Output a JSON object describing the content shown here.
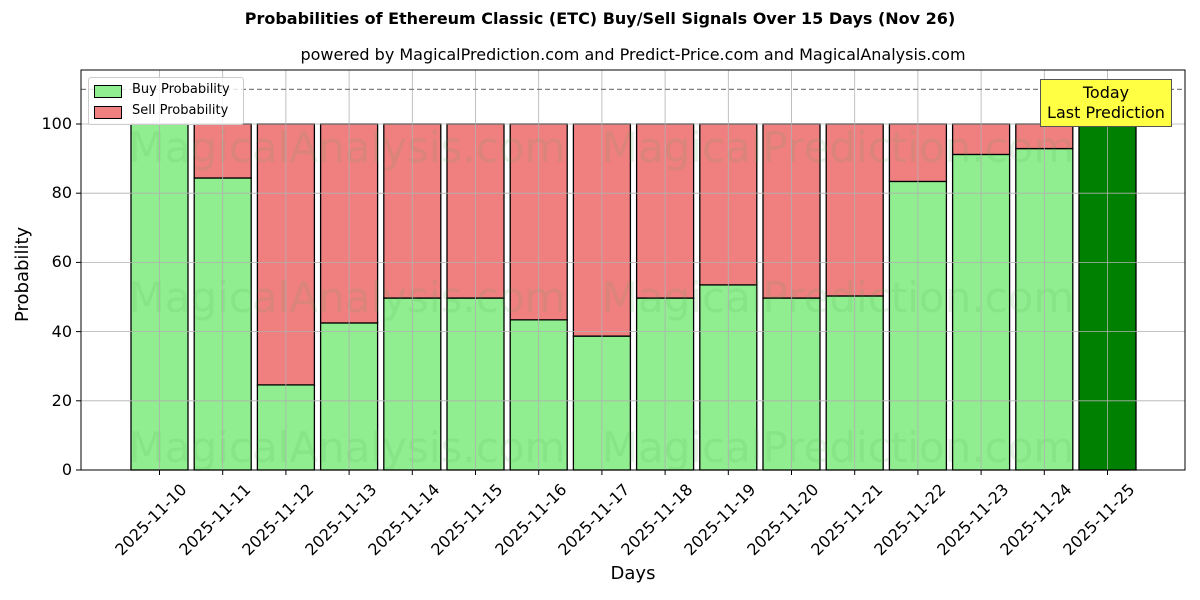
{
  "chart_data": {
    "type": "bar",
    "stacked": true,
    "title": "Probabilities of Ethereum Classic (ETC) Buy/Sell Signals Over 15 Days (Nov 26)",
    "subtitle": "powered by MagicalPrediction.com and Predict-Price.com and MagicalAnalysis.com",
    "xlabel": "Days",
    "ylabel": "Probability",
    "ylim": [
      0,
      115
    ],
    "yticks": [
      0,
      20,
      40,
      60,
      80,
      100
    ],
    "grid": true,
    "legend_position": "upper left",
    "reference_line": {
      "y": 110,
      "style": "dashed",
      "color": "#808080"
    },
    "categories": [
      "2025-11-10",
      "2025-11-11",
      "2025-11-12",
      "2025-11-13",
      "2025-11-14",
      "2025-11-15",
      "2025-11-16",
      "2025-11-17",
      "2025-11-18",
      "2025-11-19",
      "2025-11-20",
      "2025-11-21",
      "2025-11-22",
      "2025-11-23",
      "2025-11-24",
      "2025-11-25"
    ],
    "series": [
      {
        "name": "Buy Probability",
        "color": "#90ee90",
        "values": [
          100,
          84.4,
          24.6,
          42.5,
          49.7,
          49.7,
          43.4,
          38.7,
          49.7,
          53.5,
          49.7,
          50.3,
          83.4,
          91.2,
          92.9,
          100
        ]
      },
      {
        "name": "Sell Probability",
        "color": "#f08080",
        "values": [
          0,
          15.6,
          75.4,
          57.5,
          50.3,
          50.3,
          56.6,
          61.3,
          50.3,
          46.5,
          50.3,
          49.7,
          16.6,
          8.8,
          7.1,
          0
        ]
      }
    ],
    "highlight": {
      "category": "2025-11-25",
      "color": "#008000",
      "annotation": [
        "Today",
        "Last Prediction"
      ]
    },
    "watermarks": [
      "MagicalAnalysis.com",
      "MagicalPrediction.com"
    ]
  },
  "legend": {
    "buy_label": "Buy Probability",
    "sell_label": "Sell Probability"
  },
  "annotation": {
    "line1": "Today",
    "line2": "Last Prediction"
  },
  "axis": {
    "yticks": [
      "0",
      "20",
      "40",
      "60",
      "80",
      "100"
    ]
  }
}
